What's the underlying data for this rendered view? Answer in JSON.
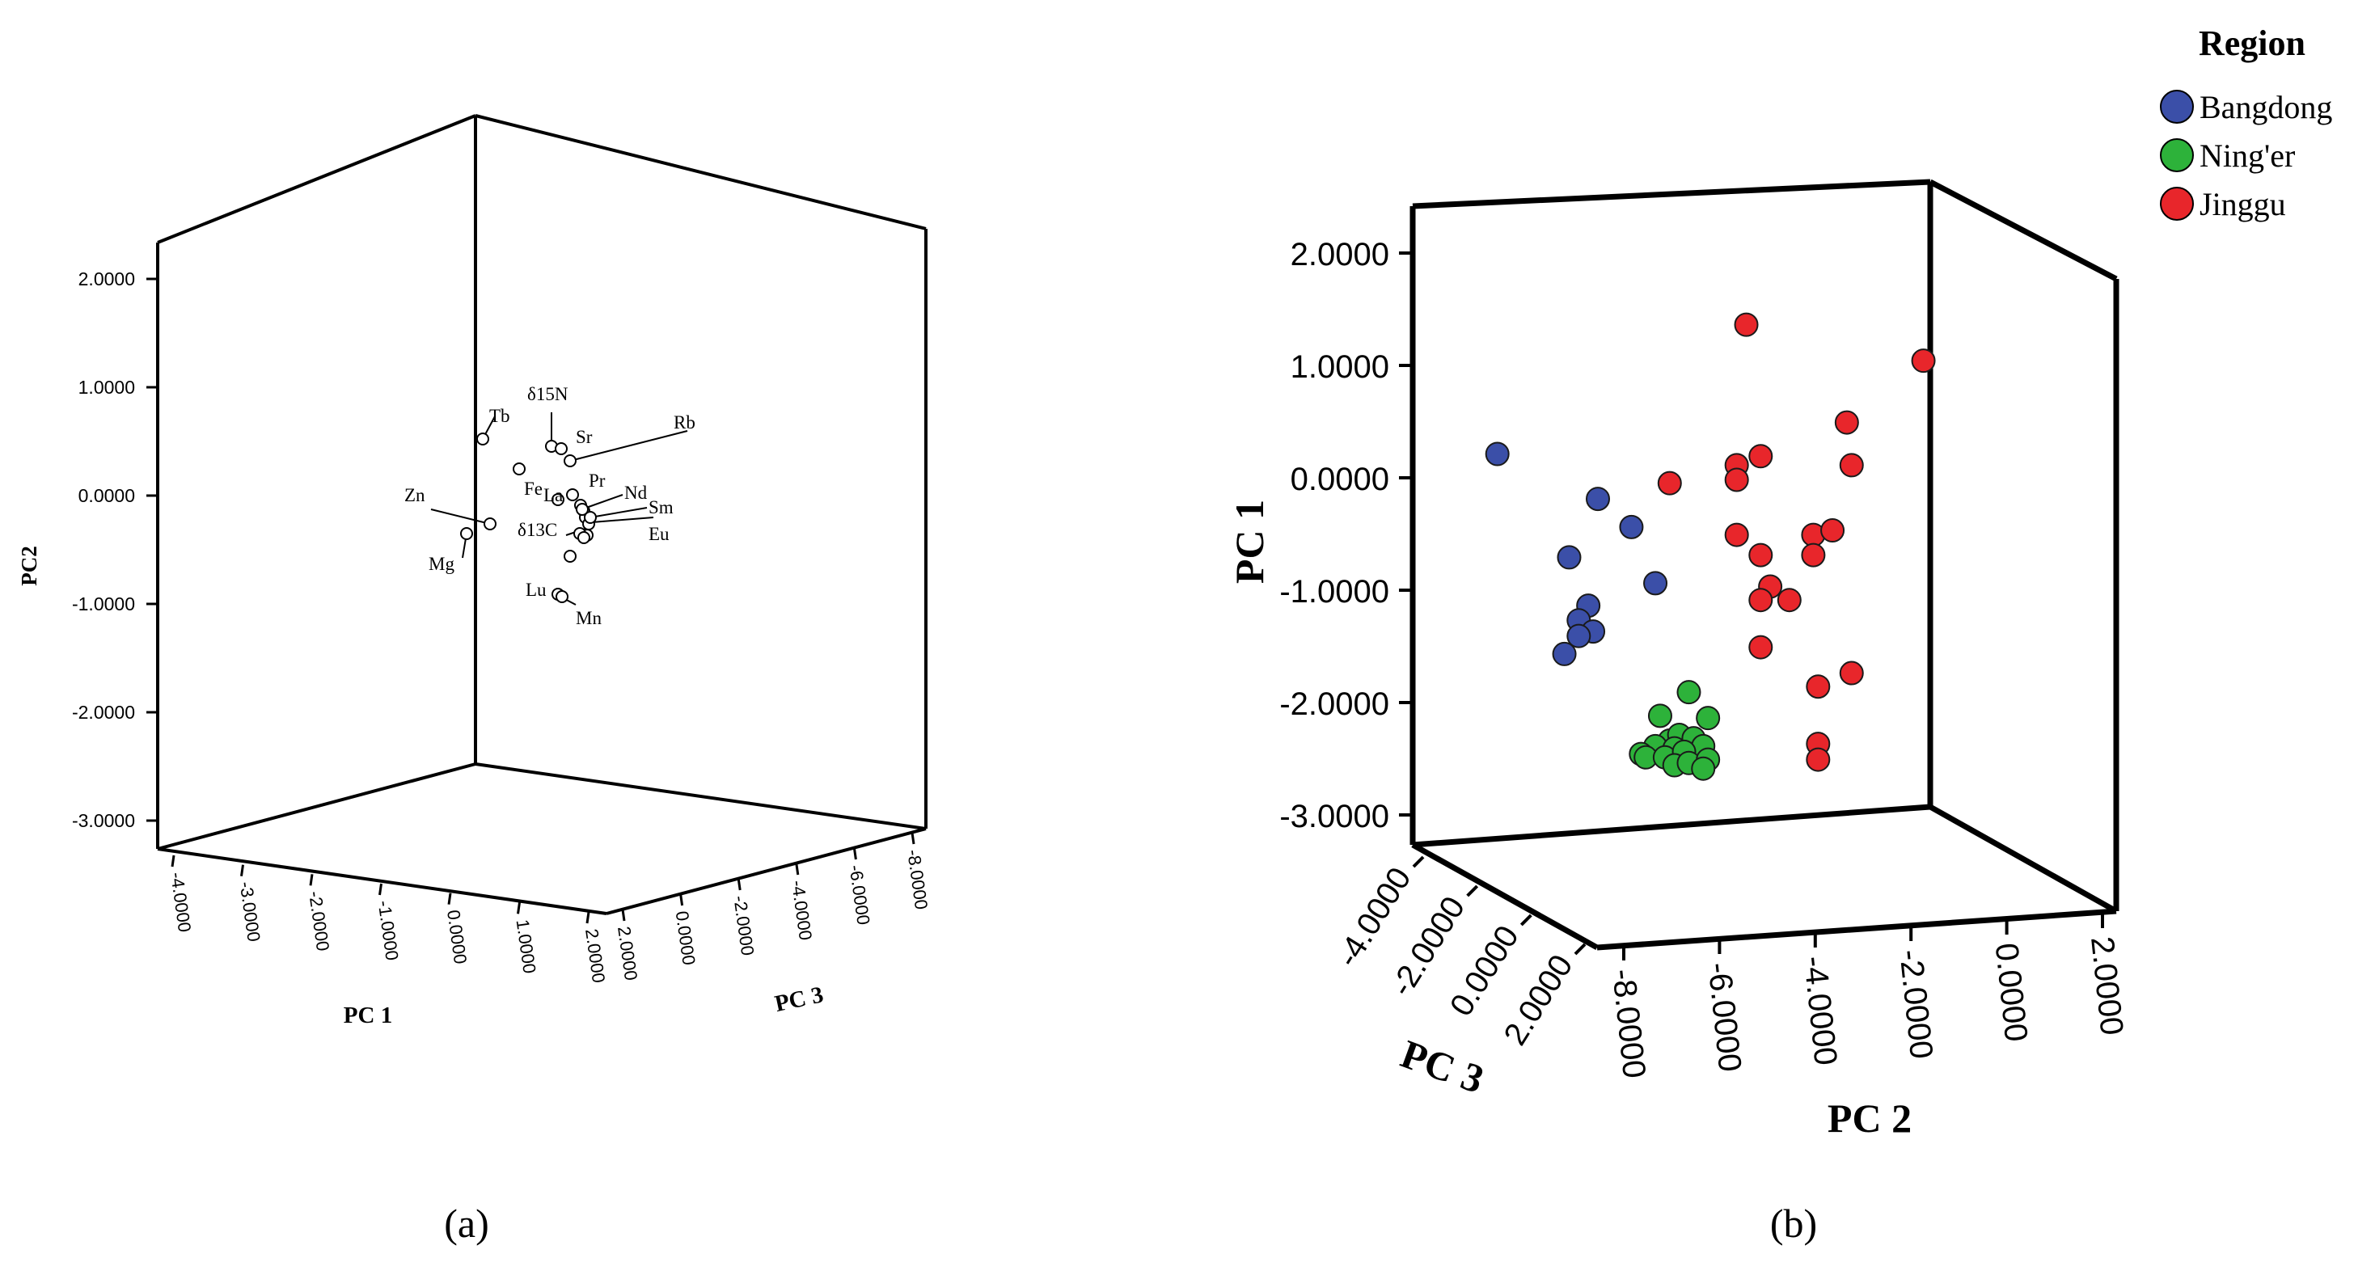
{
  "panels": {
    "a": {
      "caption": "(a)"
    },
    "b": {
      "caption": "(b)"
    }
  },
  "chart_data": [
    {
      "type": "scatter",
      "subtype": "3d-loading-plot",
      "panel": "(a)",
      "axes": {
        "pc1": {
          "label": "PC 1",
          "ticks": [
            "-4.0000",
            "-3.0000",
            "-2.0000",
            "-1.0000",
            "0.0000",
            "1.0000",
            "2.0000"
          ],
          "range": [
            -4,
            2
          ]
        },
        "pc2": {
          "label": "PC2",
          "ticks": [
            "2.0000",
            "1.0000",
            "0.0000",
            "-1.0000",
            "-2.0000",
            "-3.0000"
          ],
          "range": [
            -3,
            2
          ]
        },
        "pc3": {
          "label": "PC 3",
          "ticks": [
            "2.0000",
            "0.0000",
            "-2.0000",
            "-4.0000",
            "-6.0000",
            "-8.0000"
          ],
          "range": [
            2,
            -8
          ]
        }
      },
      "marker": "open-circle",
      "points": [
        {
          "label": "Tb",
          "pc2": 0.48
        },
        {
          "label": "δ15N",
          "pc2": 0.42
        },
        {
          "label": "Sr",
          "pc2": 0.38
        },
        {
          "label": "Rb",
          "pc2": 0.3
        },
        {
          "label": "Fe",
          "pc2": 0.22
        },
        {
          "label": "La",
          "pc2": 0.0
        },
        {
          "label": "Pr",
          "pc2": -0.05
        },
        {
          "label": "Nd",
          "pc2": -0.12
        },
        {
          "label": "Sm",
          "pc2": -0.2
        },
        {
          "label": "Eu",
          "pc2": -0.3
        },
        {
          "label": "δ13C",
          "pc2": -0.35
        },
        {
          "label": "Zn",
          "pc2": -0.3
        },
        {
          "label": "Mg",
          "pc2": -0.38
        },
        {
          "label": "Lu",
          "pc2": -0.9
        },
        {
          "label": "Mn",
          "pc2": -0.95
        },
        {
          "label": "",
          "pc2": -0.58
        }
      ]
    },
    {
      "type": "scatter",
      "subtype": "3d-score-plot",
      "panel": "(b)",
      "axes": {
        "pc1": {
          "label": "PC 1",
          "ticks": [
            "2.0000",
            "1.0000",
            "0.0000",
            "-1.0000",
            "-2.0000",
            "-3.0000"
          ],
          "range": [
            -3,
            2
          ]
        },
        "pc2": {
          "label": "PC 2",
          "ticks": [
            "-8.0000",
            "-6.0000",
            "-4.0000",
            "-2.0000",
            "0.0000",
            "2.0000"
          ],
          "range": [
            -8,
            2
          ]
        },
        "pc3": {
          "label": "PC 3",
          "ticks": [
            "-4.0000",
            "-2.0000",
            "0.0000",
            "2.0000"
          ],
          "range": [
            -4,
            2
          ]
        }
      },
      "legend": {
        "title": "Region",
        "position": "top-right",
        "entries": [
          {
            "name": "Bangdong",
            "color": "#3b4fa8"
          },
          {
            "name": "Ning'er",
            "color": "#2db23a"
          },
          {
            "name": "Jinggu",
            "color": "#e8262b"
          }
        ]
      },
      "series": [
        {
          "name": "Bangdong",
          "color": "#3b4fa8",
          "points": [
            {
              "pc2": -7.6,
              "pc1": 0.5
            },
            {
              "pc2": -5.5,
              "pc1": 0.1
            },
            {
              "pc2": -4.8,
              "pc1": -0.15
            },
            {
              "pc2": -6.1,
              "pc1": -0.42
            },
            {
              "pc2": -4.3,
              "pc1": -0.65
            },
            {
              "pc2": -5.7,
              "pc1": -0.85
            },
            {
              "pc2": -5.9,
              "pc1": -0.98
            },
            {
              "pc2": -5.6,
              "pc1": -1.08
            },
            {
              "pc2": -5.9,
              "pc1": -1.12
            },
            {
              "pc2": -6.2,
              "pc1": -1.28
            }
          ]
        },
        {
          "name": "Ning'er",
          "color": "#2db23a",
          "points": [
            {
              "pc2": -3.6,
              "pc1": -1.62
            },
            {
              "pc2": -4.2,
              "pc1": -1.83
            },
            {
              "pc2": -3.2,
              "pc1": -1.85
            },
            {
              "pc2": -4.0,
              "pc1": -2.05
            },
            {
              "pc2": -3.8,
              "pc1": -2.0
            },
            {
              "pc2": -3.5,
              "pc1": -2.03
            },
            {
              "pc2": -4.3,
              "pc1": -2.1
            },
            {
              "pc2": -3.9,
              "pc1": -2.12
            },
            {
              "pc2": -3.3,
              "pc1": -2.1
            },
            {
              "pc2": -4.6,
              "pc1": -2.17
            },
            {
              "pc2": -4.5,
              "pc1": -2.2
            },
            {
              "pc2": -4.1,
              "pc1": -2.2
            },
            {
              "pc2": -3.7,
              "pc1": -2.15
            },
            {
              "pc2": -3.9,
              "pc1": -2.27
            },
            {
              "pc2": -3.6,
              "pc1": -2.25
            },
            {
              "pc2": -3.2,
              "pc1": -2.22
            },
            {
              "pc2": -3.3,
              "pc1": -2.3
            }
          ]
        },
        {
          "name": "Jinggu",
          "color": "#e8262b",
          "points": [
            {
              "pc2": -2.4,
              "pc1": 1.65
            },
            {
              "pc2": 1.3,
              "pc1": 1.33
            },
            {
              "pc2": -0.3,
              "pc1": 0.78
            },
            {
              "pc2": -0.2,
              "pc1": 0.4
            },
            {
              "pc2": -2.1,
              "pc1": 0.48
            },
            {
              "pc2": -2.6,
              "pc1": 0.4
            },
            {
              "pc2": -2.6,
              "pc1": 0.27
            },
            {
              "pc2": -4.0,
              "pc1": 0.24
            },
            {
              "pc2": -2.6,
              "pc1": -0.22
            },
            {
              "pc2": -1.0,
              "pc1": -0.22
            },
            {
              "pc2": -0.6,
              "pc1": -0.18
            },
            {
              "pc2": -2.1,
              "pc1": -0.4
            },
            {
              "pc2": -1.0,
              "pc1": -0.4
            },
            {
              "pc2": -1.9,
              "pc1": -0.68
            },
            {
              "pc2": -2.1,
              "pc1": -0.8
            },
            {
              "pc2": -1.5,
              "pc1": -0.8
            },
            {
              "pc2": -2.1,
              "pc1": -1.22
            },
            {
              "pc2": -0.2,
              "pc1": -1.45
            },
            {
              "pc2": -0.9,
              "pc1": -1.57
            },
            {
              "pc2": -0.9,
              "pc1": -2.08
            },
            {
              "pc2": -0.9,
              "pc1": -2.22
            }
          ]
        }
      ]
    }
  ]
}
